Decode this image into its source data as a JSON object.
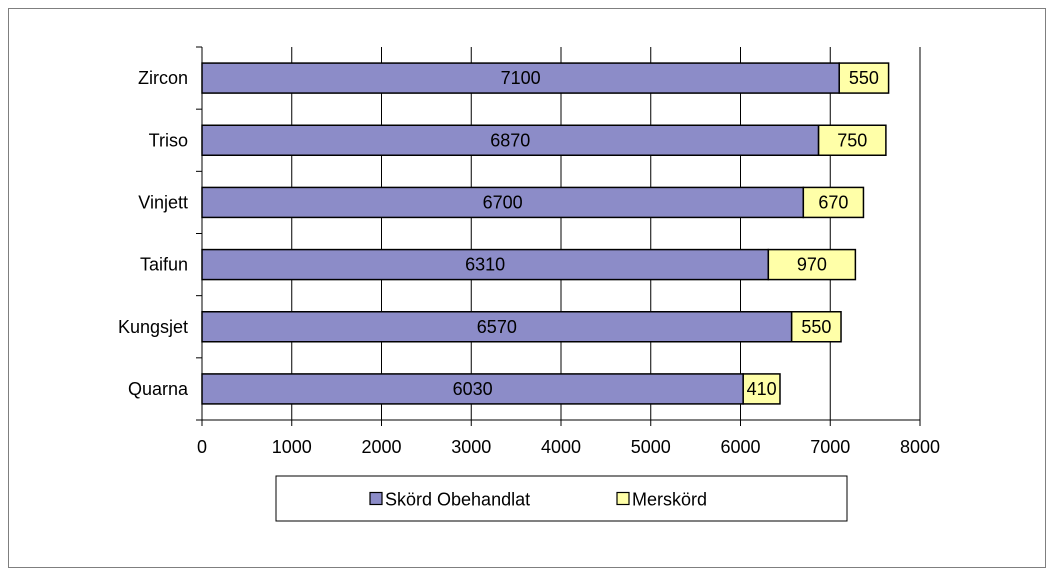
{
  "chart_data": {
    "type": "bar",
    "orientation": "horizontal",
    "stacked": true,
    "categories": [
      "Zircon",
      "Triso",
      "Vinjett",
      "Taifun",
      "Kungsjet",
      "Quarna"
    ],
    "series": [
      {
        "name": "Skörd Obehandlat",
        "values": [
          7100,
          6870,
          6700,
          6310,
          6570,
          6030
        ],
        "color": "#8c8cc8"
      },
      {
        "name": "Merskörd",
        "values": [
          550,
          750,
          670,
          970,
          550,
          410
        ],
        "color": "#ffffa8"
      }
    ],
    "xlim": [
      0,
      8000
    ],
    "xticks": [
      "0",
      "1000",
      "2000",
      "3000",
      "4000",
      "5000",
      "6000",
      "7000",
      "8000"
    ],
    "grid": true,
    "legend": "bottom"
  }
}
